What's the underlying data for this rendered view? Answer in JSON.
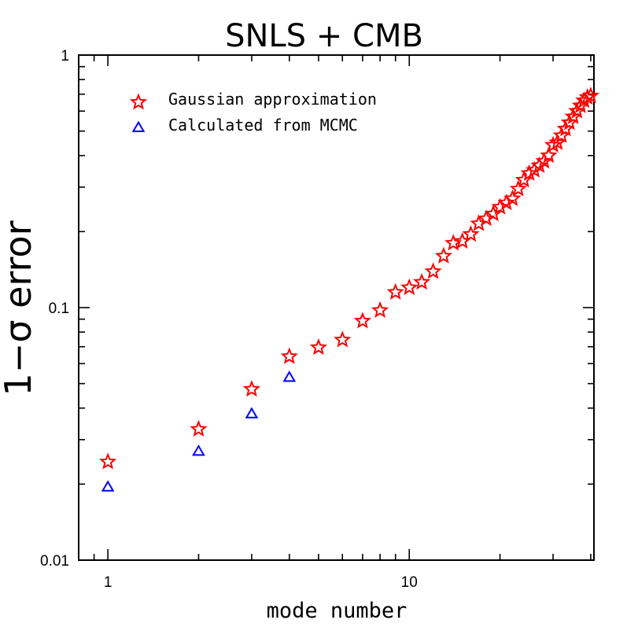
{
  "chart_data": {
    "type": "scatter",
    "title": "SNLS + CMB",
    "xlabel": "mode number",
    "ylabel": "1−σ error",
    "xscale": "log",
    "yscale": "log",
    "xlim": [
      0.8,
      41
    ],
    "ylim": [
      0.01,
      1
    ],
    "x_tick_labels": [
      {
        "value": 1,
        "label": "1"
      },
      {
        "value": 10,
        "label": "10"
      }
    ],
    "y_tick_labels": [
      {
        "value": 0.01,
        "label": "0.01"
      },
      {
        "value": 0.1,
        "label": "0.1"
      },
      {
        "value": 1,
        "label": "1"
      }
    ],
    "legend_position": "top-left",
    "grid": false,
    "series": [
      {
        "name": "Gaussian approximation",
        "marker": "star",
        "color": "#ff0000",
        "x": [
          1,
          2,
          3,
          4,
          5,
          6,
          7,
          8,
          9,
          10,
          11,
          12,
          13,
          14,
          15,
          16,
          17,
          18,
          19,
          20,
          21,
          22,
          23,
          24,
          25,
          26,
          27,
          28,
          29,
          30,
          31,
          32,
          33,
          34,
          35,
          36,
          37,
          38,
          39,
          40
        ],
        "y": [
          0.0245,
          0.033,
          0.0475,
          0.064,
          0.0695,
          0.0745,
          0.0885,
          0.0975,
          0.115,
          0.12,
          0.126,
          0.139,
          0.16,
          0.18,
          0.183,
          0.195,
          0.215,
          0.225,
          0.235,
          0.25,
          0.26,
          0.27,
          0.295,
          0.32,
          0.34,
          0.35,
          0.365,
          0.38,
          0.4,
          0.44,
          0.45,
          0.48,
          0.51,
          0.54,
          0.57,
          0.6,
          0.63,
          0.66,
          0.68,
          0.69
        ]
      },
      {
        "name": "Calculated from MCMC",
        "marker": "triangle",
        "color": "#0000ff",
        "x": [
          1,
          2,
          3,
          4
        ],
        "y": [
          0.0195,
          0.027,
          0.038,
          0.053
        ]
      }
    ]
  }
}
